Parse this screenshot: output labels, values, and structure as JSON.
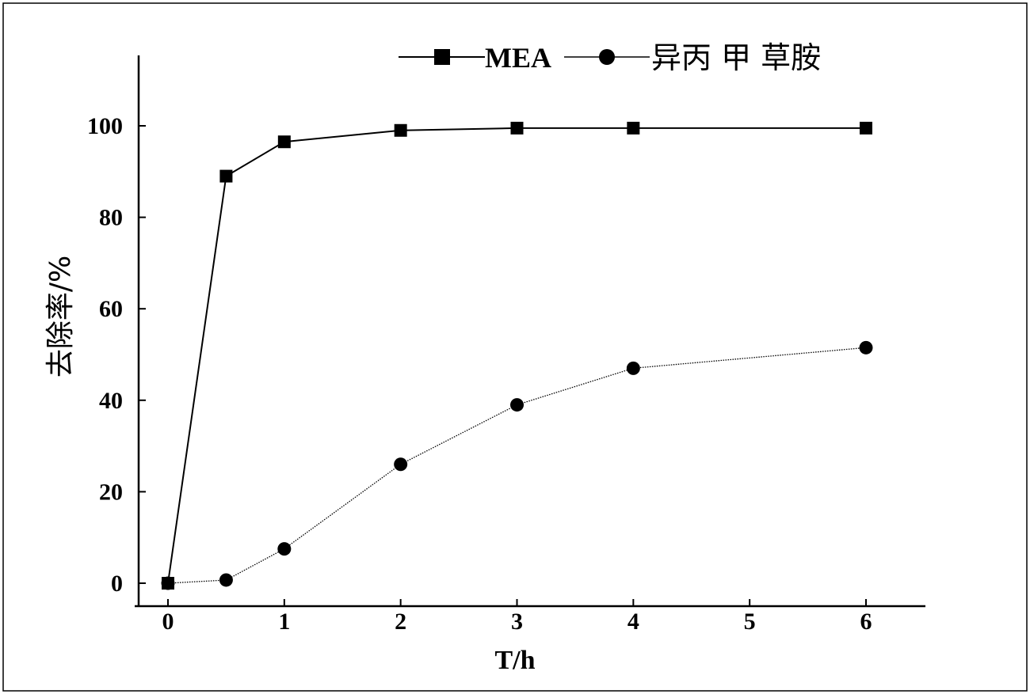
{
  "chart_data": {
    "type": "line",
    "xlabel": "T/h",
    "ylabel": "去除率/%",
    "xlim": [
      -0.3,
      6.55
    ],
    "ylim": [
      -5,
      115
    ],
    "xticks": [
      0,
      1,
      2,
      3,
      4,
      5,
      6
    ],
    "yticks": [
      0,
      20,
      40,
      60,
      80,
      100
    ],
    "grid": false,
    "legend_position": "top-right",
    "series": [
      {
        "name": "MEA",
        "marker": "square",
        "line_style": "solid",
        "color": "#000000",
        "x": [
          0,
          0.5,
          1,
          2,
          3,
          4,
          6
        ],
        "y": [
          0,
          89,
          96.5,
          99,
          99.5,
          99.5,
          99.5
        ]
      },
      {
        "name": "异丙 甲 草胺",
        "marker": "circle",
        "line_style": "dotted",
        "color": "#000000",
        "x": [
          0,
          0.5,
          1,
          2,
          3,
          4,
          6
        ],
        "y": [
          0,
          0.7,
          7.5,
          26,
          39,
          47,
          51.5
        ]
      }
    ]
  }
}
